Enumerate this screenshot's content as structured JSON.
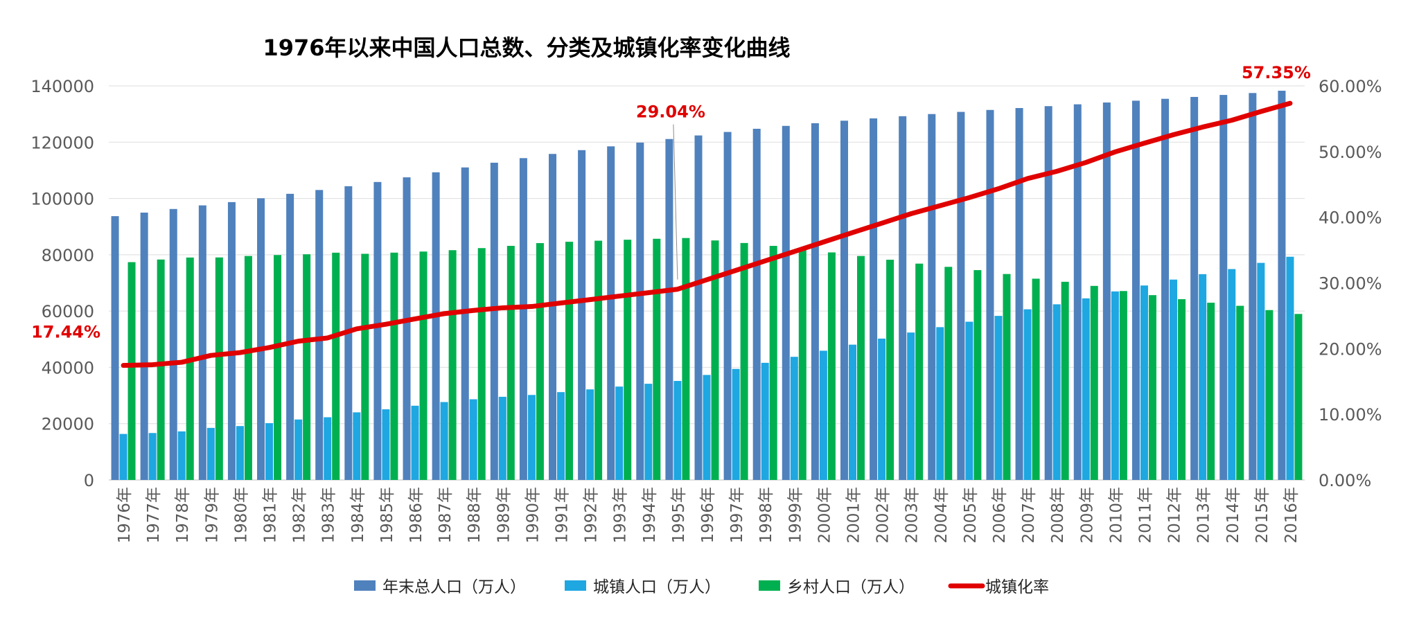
{
  "chart_data": {
    "type": "bar",
    "title": "1976年以来中国人口总数、分类及城镇化率变化曲线",
    "categories": [
      "1976年",
      "1977年",
      "1978年",
      "1979年",
      "1980年",
      "1981年",
      "1982年",
      "1983年",
      "1984年",
      "1985年",
      "1986年",
      "1987年",
      "1988年",
      "1989年",
      "1990年",
      "1991年",
      "1992年",
      "1993年",
      "1994年",
      "1995年",
      "1996年",
      "1997年",
      "1998年",
      "1999年",
      "2000年",
      "2001年",
      "2002年",
      "2003年",
      "2004年",
      "2005年",
      "2006年",
      "2007年",
      "2008年",
      "2009年",
      "2010年",
      "2011年",
      "2012年",
      "2013年",
      "2014年",
      "2015年",
      "2016年"
    ],
    "series": [
      {
        "name": "年末总人口（万人）",
        "kind": "bar",
        "axis": "left",
        "color": "#4F81BD",
        "values": [
          93717,
          94974,
          96259,
          97542,
          98705,
          100072,
          101654,
          103008,
          104357,
          105851,
          107507,
          109300,
          111026,
          112704,
          114333,
          115823,
          117171,
          118517,
          119850,
          121121,
          122389,
          123626,
          124761,
          125786,
          126743,
          127627,
          128453,
          129227,
          129988,
          130756,
          131448,
          132129,
          132802,
          133450,
          134091,
          134735,
          135404,
          136072,
          136782,
          137462,
          138271
        ]
      },
      {
        "name": "城镇人口（万人）",
        "kind": "bar",
        "axis": "left",
        "color": "#1EA7E1",
        "values": [
          16341,
          16669,
          17245,
          18495,
          19140,
          20171,
          21480,
          22274,
          24017,
          25094,
          26366,
          27674,
          28661,
          29540,
          30195,
          31203,
          32175,
          33173,
          34169,
          35174,
          37304,
          39449,
          41608,
          43748,
          45906,
          48064,
          50212,
          52376,
          54283,
          56212,
          58288,
          60633,
          62403,
          64512,
          66978,
          69079,
          71182,
          73111,
          74916,
          77116,
          79298
        ]
      },
      {
        "name": "乡村人口（万人）",
        "kind": "bar",
        "axis": "left",
        "color": "#00B050",
        "values": [
          77376,
          78305,
          79014,
          79047,
          79565,
          79901,
          80174,
          80734,
          80340,
          80757,
          81141,
          81626,
          82365,
          83164,
          84138,
          84620,
          84996,
          85344,
          85681,
          85947,
          85085,
          84177,
          83153,
          82038,
          80837,
          79563,
          78241,
          76851,
          75705,
          74544,
          73160,
          71496,
          70399,
          68938,
          67113,
          65656,
          64222,
          62961,
          61866,
          60346,
          58973
        ]
      },
      {
        "name": "城镇化率",
        "kind": "line",
        "axis": "right",
        "color": "#E00000",
        "values": [
          17.44,
          17.55,
          17.92,
          18.96,
          19.39,
          20.16,
          21.13,
          21.62,
          23.01,
          23.71,
          24.52,
          25.32,
          25.81,
          26.21,
          26.41,
          26.94,
          27.46,
          27.99,
          28.51,
          29.04,
          30.48,
          31.91,
          33.35,
          34.78,
          36.22,
          37.66,
          39.09,
          40.53,
          41.76,
          42.99,
          44.34,
          45.89,
          46.99,
          48.34,
          49.95,
          51.27,
          52.57,
          53.73,
          54.77,
          56.1,
          57.35
        ]
      }
    ],
    "y_left": {
      "ylim": [
        0,
        140000
      ],
      "ticks": [
        "0",
        "20000",
        "40000",
        "60000",
        "80000",
        "100000",
        "120000",
        "140000"
      ]
    },
    "y_right": {
      "ylim": [
        0,
        60
      ],
      "ticks": [
        "0.00%",
        "10.00%",
        "20.00%",
        "30.00%",
        "40.00%",
        "50.00%",
        "60.00%"
      ]
    },
    "annotations": [
      {
        "category": "1976年",
        "text": "17.44%"
      },
      {
        "category": "1995年",
        "text": "29.04%"
      },
      {
        "category": "2016年",
        "text": "57.35%"
      }
    ],
    "grid": true,
    "legend_position": "bottom"
  }
}
